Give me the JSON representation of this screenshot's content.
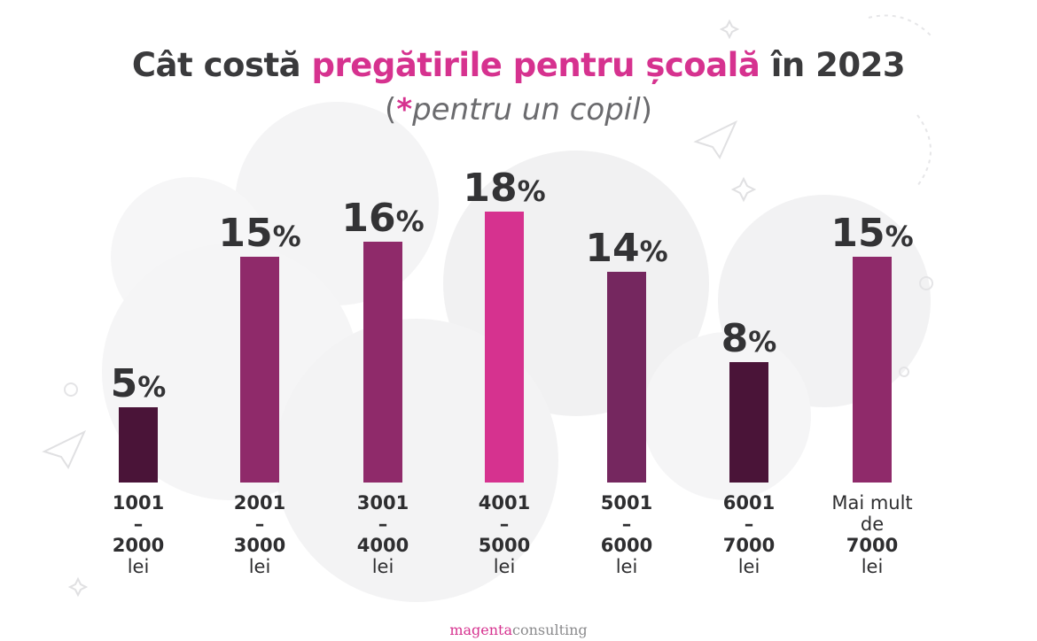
{
  "title": {
    "part1": "Cât costă ",
    "highlight": "pregătirile pentru școală",
    "part2": " în 2023"
  },
  "subtitle": {
    "open": "(",
    "star": "*",
    "text": "pentru un copil",
    "close": ")"
  },
  "brand": {
    "magenta": "magenta",
    "consulting": "consulting"
  },
  "colors": {
    "dark": "#4a1438",
    "medium": "#8f2a6a",
    "mid2": "#75275f",
    "bright": "#d6328f",
    "text": "#3a3a3c"
  },
  "chart_data": {
    "type": "bar",
    "title": "Cât costă pregătirile pentru școală în 2023",
    "subtitle": "(*pentru un copil)",
    "categories": [
      "1001 – 2000 lei",
      "2001 – 3000 lei",
      "3001 – 4000 lei",
      "4001 – 5000 lei",
      "5001 – 6000 lei",
      "6001 – 7000 lei",
      "Mai mult de 7000 lei"
    ],
    "values": [
      5,
      15,
      16,
      18,
      14,
      8,
      15
    ],
    "value_labels": [
      "5%",
      "15%",
      "16%",
      "18%",
      "14%",
      "8%",
      "15%"
    ],
    "bar_colors": [
      "#4a1438",
      "#8f2a6a",
      "#8f2a6a",
      "#d6328f",
      "#75275f",
      "#4a1438",
      "#8f2a6a"
    ],
    "ylabel": "",
    "xlabel": "",
    "ylim": [
      0,
      18
    ]
  },
  "labels": [
    {
      "line1": "1001",
      "line2": "–",
      "line3": "2000",
      "line4": "lei"
    },
    {
      "line1": "2001",
      "line2": "–",
      "line3": "3000",
      "line4": "lei"
    },
    {
      "line1": "3001",
      "line2": "–",
      "line3": "4000",
      "line4": "lei"
    },
    {
      "line1": "4001",
      "line2": "–",
      "line3": "5000",
      "line4": "lei"
    },
    {
      "line1": "5001",
      "line2": "–",
      "line3": "6000",
      "line4": "lei"
    },
    {
      "line1": "6001",
      "line2": "–",
      "line3": "7000",
      "line4": "lei"
    },
    {
      "line1": "Mai mult",
      "line2": "de",
      "line3": "7000",
      "line4": "lei"
    }
  ]
}
